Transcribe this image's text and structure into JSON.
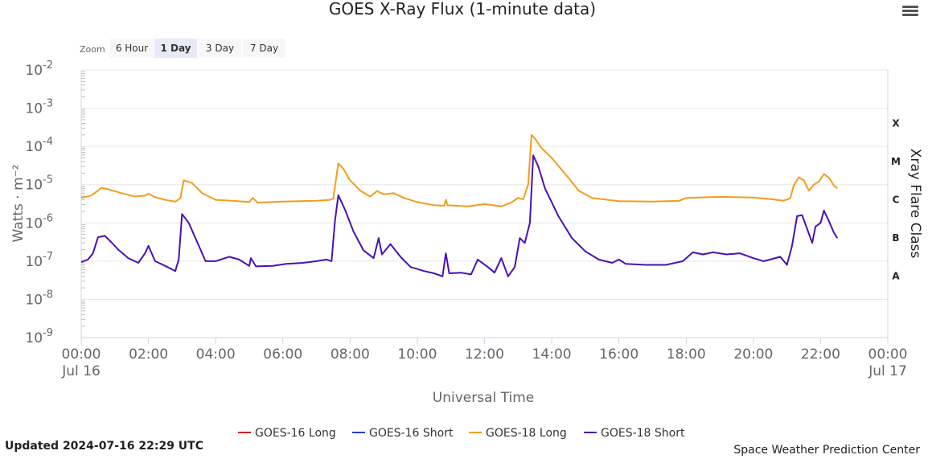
{
  "chart_data": {
    "type": "line",
    "title": "GOES X-Ray Flux (1-minute data)",
    "xlabel": "Universal Time",
    "ylabel": "Watts · m⁻²",
    "ylabel_right": "Xray Flare Class",
    "y_scale": "log",
    "ylim": [
      1e-09,
      0.01
    ],
    "xlim_hours": [
      0,
      24
    ],
    "x_ticks": [
      {
        "label": "00:00",
        "sub": "Jul 16"
      },
      {
        "label": "02:00"
      },
      {
        "label": "04:00"
      },
      {
        "label": "06:00"
      },
      {
        "label": "08:00"
      },
      {
        "label": "10:00"
      },
      {
        "label": "12:00"
      },
      {
        "label": "14:00"
      },
      {
        "label": "16:00"
      },
      {
        "label": "18:00"
      },
      {
        "label": "20:00"
      },
      {
        "label": "22:00"
      },
      {
        "label": "00:00",
        "sub": "Jul 17"
      }
    ],
    "y_ticks": [
      {
        "base": "10",
        "exp": "-2"
      },
      {
        "base": "10",
        "exp": "-3"
      },
      {
        "base": "10",
        "exp": "-4"
      },
      {
        "base": "10",
        "exp": "-5"
      },
      {
        "base": "10",
        "exp": "-6"
      },
      {
        "base": "10",
        "exp": "-7"
      },
      {
        "base": "10",
        "exp": "-8"
      },
      {
        "base": "10",
        "exp": "-9"
      }
    ],
    "flare_classes": [
      "X",
      "M",
      "C",
      "B",
      "A"
    ],
    "series": [
      {
        "name": "GOES-16 Long",
        "color": "#d62020",
        "points": []
      },
      {
        "name": "GOES-16 Short",
        "color": "#1f3fd6",
        "points": []
      },
      {
        "name": "GOES-18 Long",
        "color": "#f39c1e",
        "points": [
          [
            0.0,
            4.5e-06
          ],
          [
            0.3,
            5.2e-06
          ],
          [
            0.5,
            7e-06
          ],
          [
            0.6,
            8.3e-06
          ],
          [
            0.8,
            7.6e-06
          ],
          [
            1.2,
            6e-06
          ],
          [
            1.6,
            4.9e-06
          ],
          [
            1.9,
            5.2e-06
          ],
          [
            2.0,
            5.8e-06
          ],
          [
            2.2,
            4.7e-06
          ],
          [
            2.5,
            4e-06
          ],
          [
            2.8,
            3.6e-06
          ],
          [
            2.95,
            4.4e-06
          ],
          [
            3.05,
            1.3e-05
          ],
          [
            3.3,
            1.1e-05
          ],
          [
            3.6,
            6e-06
          ],
          [
            4.0,
            4e-06
          ],
          [
            4.5,
            3.8e-06
          ],
          [
            5.0,
            3.5e-06
          ],
          [
            5.1,
            4.5e-06
          ],
          [
            5.25,
            3.4e-06
          ],
          [
            6.0,
            3.6e-06
          ],
          [
            7.0,
            3.8e-06
          ],
          [
            7.4,
            4e-06
          ],
          [
            7.5,
            4.3e-06
          ],
          [
            7.65,
            3.6e-05
          ],
          [
            7.8,
            2.6e-05
          ],
          [
            8.0,
            1.3e-05
          ],
          [
            8.3,
            7e-06
          ],
          [
            8.6,
            4.9e-06
          ],
          [
            8.8,
            6.8e-06
          ],
          [
            9.0,
            5.6e-06
          ],
          [
            9.3,
            6e-06
          ],
          [
            9.6,
            4.5e-06
          ],
          [
            10.0,
            3.5e-06
          ],
          [
            10.5,
            2.9e-06
          ],
          [
            10.8,
            2.8e-06
          ],
          [
            10.85,
            4e-06
          ],
          [
            10.9,
            2.9e-06
          ],
          [
            11.5,
            2.7e-06
          ],
          [
            12.0,
            3.1e-06
          ],
          [
            12.5,
            2.7e-06
          ],
          [
            12.8,
            3.4e-06
          ],
          [
            13.0,
            4.5e-06
          ],
          [
            13.15,
            4.1e-06
          ],
          [
            13.3,
            1e-05
          ],
          [
            13.4,
            0.0002
          ],
          [
            13.5,
            0.00016
          ],
          [
            13.7,
            9e-05
          ],
          [
            14.0,
            5e-05
          ],
          [
            14.5,
            1.5e-05
          ],
          [
            14.8,
            7e-06
          ],
          [
            15.2,
            4.5e-06
          ],
          [
            16.0,
            3.7e-06
          ],
          [
            17.0,
            3.6e-06
          ],
          [
            17.8,
            3.8e-06
          ],
          [
            18.0,
            4.5e-06
          ],
          [
            19.0,
            4.8e-06
          ],
          [
            20.0,
            4.6e-06
          ],
          [
            20.5,
            4.2e-06
          ],
          [
            20.9,
            3.8e-06
          ],
          [
            21.1,
            4.4e-06
          ],
          [
            21.2,
            9.5e-06
          ],
          [
            21.35,
            1.55e-05
          ],
          [
            21.5,
            1.3e-05
          ],
          [
            21.65,
            7e-06
          ],
          [
            21.8,
            1e-05
          ],
          [
            21.95,
            1.2e-05
          ],
          [
            22.1,
            1.9e-05
          ],
          [
            22.25,
            1.5e-05
          ],
          [
            22.4,
            9.5e-06
          ],
          [
            22.5,
            8e-06
          ]
        ]
      },
      {
        "name": "GOES-18 Short",
        "color": "#4b0fb5",
        "points": [
          [
            0.0,
            9.5e-08
          ],
          [
            0.2,
            1.1e-07
          ],
          [
            0.35,
            1.6e-07
          ],
          [
            0.5,
            4.2e-07
          ],
          [
            0.7,
            4.6e-07
          ],
          [
            0.9,
            3.1e-07
          ],
          [
            1.1,
            2e-07
          ],
          [
            1.4,
            1.2e-07
          ],
          [
            1.7,
            9e-08
          ],
          [
            1.9,
            1.6e-07
          ],
          [
            2.0,
            2.5e-07
          ],
          [
            2.2,
            1e-07
          ],
          [
            2.5,
            7.5e-08
          ],
          [
            2.8,
            5.5e-08
          ],
          [
            2.9,
            1.1e-07
          ],
          [
            3.0,
            1.7e-06
          ],
          [
            3.2,
            1e-06
          ],
          [
            3.5,
            2.5e-07
          ],
          [
            3.7,
            1e-07
          ],
          [
            4.0,
            1e-07
          ],
          [
            4.4,
            1.3e-07
          ],
          [
            4.7,
            1.1e-07
          ],
          [
            5.0,
            7.5e-08
          ],
          [
            5.05,
            1.2e-07
          ],
          [
            5.2,
            7.3e-08
          ],
          [
            5.7,
            7.5e-08
          ],
          [
            6.1,
            8.5e-08
          ],
          [
            6.6,
            9e-08
          ],
          [
            7.0,
            1e-07
          ],
          [
            7.3,
            1.1e-07
          ],
          [
            7.45,
            1e-07
          ],
          [
            7.55,
            1.1e-06
          ],
          [
            7.65,
            5.3e-06
          ],
          [
            7.85,
            2.2e-06
          ],
          [
            8.1,
            6e-07
          ],
          [
            8.4,
            1.9e-07
          ],
          [
            8.7,
            1.2e-07
          ],
          [
            8.85,
            4e-07
          ],
          [
            8.95,
            1.5e-07
          ],
          [
            9.2,
            2.8e-07
          ],
          [
            9.5,
            1.3e-07
          ],
          [
            9.8,
            7e-08
          ],
          [
            10.2,
            5.5e-08
          ],
          [
            10.5,
            4.8e-08
          ],
          [
            10.75,
            4e-08
          ],
          [
            10.85,
            1.6e-07
          ],
          [
            10.95,
            4.8e-08
          ],
          [
            11.3,
            5e-08
          ],
          [
            11.6,
            4.5e-08
          ],
          [
            11.8,
            1.1e-07
          ],
          [
            12.1,
            7e-08
          ],
          [
            12.3,
            5e-08
          ],
          [
            12.5,
            1.2e-07
          ],
          [
            12.7,
            4e-08
          ],
          [
            12.9,
            7e-08
          ],
          [
            13.05,
            4e-07
          ],
          [
            13.2,
            3e-07
          ],
          [
            13.35,
            1e-06
          ],
          [
            13.45,
            5.8e-05
          ],
          [
            13.6,
            3e-05
          ],
          [
            13.8,
            8e-06
          ],
          [
            14.2,
            1.5e-06
          ],
          [
            14.6,
            4e-07
          ],
          [
            15.0,
            1.8e-07
          ],
          [
            15.4,
            1.1e-07
          ],
          [
            15.8,
            9e-08
          ],
          [
            16.0,
            1.1e-07
          ],
          [
            16.2,
            8.5e-08
          ],
          [
            16.8,
            8e-08
          ],
          [
            17.4,
            8e-08
          ],
          [
            17.9,
            1e-07
          ],
          [
            18.2,
            1.7e-07
          ],
          [
            18.5,
            1.5e-07
          ],
          [
            18.8,
            1.7e-07
          ],
          [
            19.2,
            1.5e-07
          ],
          [
            19.6,
            1.6e-07
          ],
          [
            20.0,
            1.2e-07
          ],
          [
            20.3,
            1e-07
          ],
          [
            20.5,
            1.1e-07
          ],
          [
            20.8,
            1.3e-07
          ],
          [
            21.0,
            8e-08
          ],
          [
            21.15,
            2.5e-07
          ],
          [
            21.3,
            1.5e-06
          ],
          [
            21.45,
            1.6e-06
          ],
          [
            21.6,
            7e-07
          ],
          [
            21.75,
            3e-07
          ],
          [
            21.85,
            8e-07
          ],
          [
            22.0,
            1e-06
          ],
          [
            22.1,
            2.1e-06
          ],
          [
            22.25,
            1.1e-06
          ],
          [
            22.4,
            5.5e-07
          ],
          [
            22.5,
            4e-07
          ]
        ]
      }
    ]
  },
  "zoom": {
    "label": "Zoom",
    "buttons": [
      {
        "label": "6 Hour",
        "selected": false
      },
      {
        "label": "1 Day",
        "selected": true
      },
      {
        "label": "3 Day",
        "selected": false
      },
      {
        "label": "7 Day",
        "selected": false
      }
    ]
  },
  "footer": {
    "updated": "Updated 2024-07-16 22:29 UTC",
    "credit": "Space Weather Prediction Center"
  }
}
